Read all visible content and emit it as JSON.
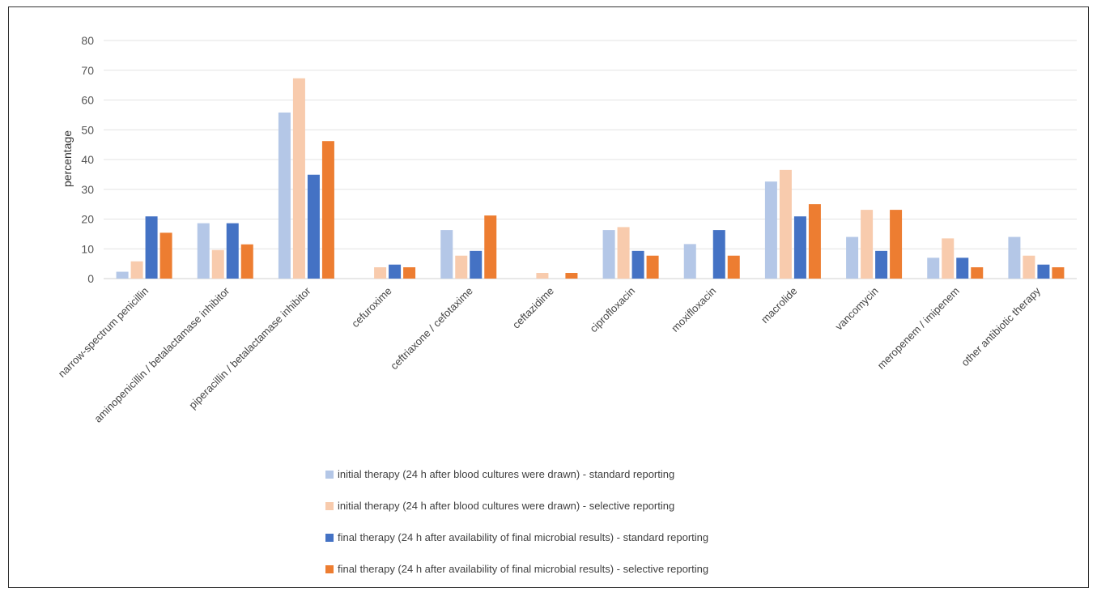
{
  "chart_data": {
    "type": "bar",
    "title": "",
    "xlabel": "",
    "ylabel": "percentage",
    "ylim": [
      0,
      80
    ],
    "yticks": [
      0,
      10,
      20,
      30,
      40,
      50,
      60,
      70,
      80
    ],
    "grid": true,
    "legend_position": "bottom",
    "categories": [
      "narrow-spectrum penicillin",
      "aminopenicillin / betalactamase inhibitor",
      "piperacillin / betalactamase inhibitor",
      "cefuroxime",
      "ceftriaxone / cefotaxime",
      "ceftazidime",
      "ciprofloxacin",
      "moxifloxacin",
      "macrolide",
      "vancomycin",
      "meropenem / imipenem",
      "other antibiotic therapy"
    ],
    "series": [
      {
        "name": "initial therapy (24 h  after blood cultures were drawn) - standard reporting",
        "color": "#b4c7e7",
        "values": [
          2.3,
          18.6,
          55.8,
          0,
          16.3,
          0,
          16.3,
          11.6,
          32.6,
          14.0,
          7.0,
          14.0
        ]
      },
      {
        "name": "initial therapy  (24 h  after blood cultures were drawn) - selective reporting",
        "color": "#f8cbad",
        "values": [
          5.8,
          9.6,
          67.3,
          3.8,
          7.7,
          1.9,
          17.3,
          0,
          36.5,
          23.1,
          13.5,
          7.7
        ]
      },
      {
        "name": "final therapy (24 h after availability of final microbial results) - standard reporting",
        "color": "#4472c4",
        "values": [
          20.9,
          18.6,
          34.9,
          4.7,
          9.3,
          0,
          9.3,
          16.3,
          20.9,
          9.3,
          7.0,
          4.7
        ]
      },
      {
        "name": "final therapy (24 h after availability of final microbial results) - selective reporting",
        "color": "#ed7d31",
        "values": [
          15.4,
          11.5,
          46.2,
          3.8,
          21.2,
          1.9,
          7.7,
          7.7,
          25.0,
          23.1,
          3.8,
          3.8
        ]
      }
    ]
  }
}
